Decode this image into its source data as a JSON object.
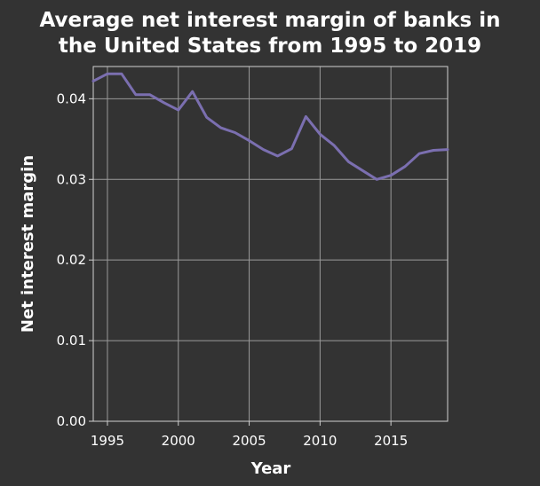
{
  "colors": {
    "background": "#333333",
    "line": "#7b6fb0",
    "grid": "#9a9a9a",
    "axis": "#d0d0d0",
    "text": "#ffffff"
  },
  "chart_data": {
    "type": "line",
    "title_line1": "Average net interest margin of banks in",
    "title_line2": "the United States from 1995 to 2019",
    "xlabel": "Year",
    "ylabel": "Net interest margin",
    "xlim": [
      1994,
      2019
    ],
    "ylim": [
      0,
      0.044
    ],
    "xticks": [
      1995,
      2000,
      2005,
      2010,
      2015
    ],
    "xtick_labels": [
      "1995",
      "2000",
      "2005",
      "2010",
      "2015"
    ],
    "yticks": [
      0,
      0.01,
      0.02,
      0.03,
      0.04
    ],
    "ytick_labels": [
      "0.00",
      "0.01",
      "0.02",
      "0.03",
      "0.04"
    ],
    "grid": true,
    "legend": "none",
    "series": [
      {
        "x": [
          1994,
          1995,
          1996,
          1997,
          1998,
          1999,
          2000,
          2001,
          2002,
          2003,
          2004,
          2005,
          2006,
          2007,
          2008,
          2009,
          2010,
          2011,
          2012,
          2013,
          2014,
          2015,
          2016,
          2017,
          2018,
          2019
        ],
        "values": [
          0.0422,
          0.0431,
          0.0431,
          0.0405,
          0.0405,
          0.0395,
          0.0386,
          0.0409,
          0.0377,
          0.0364,
          0.0358,
          0.0348,
          0.0337,
          0.0329,
          0.0338,
          0.0378,
          0.0356,
          0.0342,
          0.0322,
          0.0311,
          0.03,
          0.0305,
          0.0316,
          0.0332,
          0.0336,
          0.0337
        ]
      }
    ]
  }
}
